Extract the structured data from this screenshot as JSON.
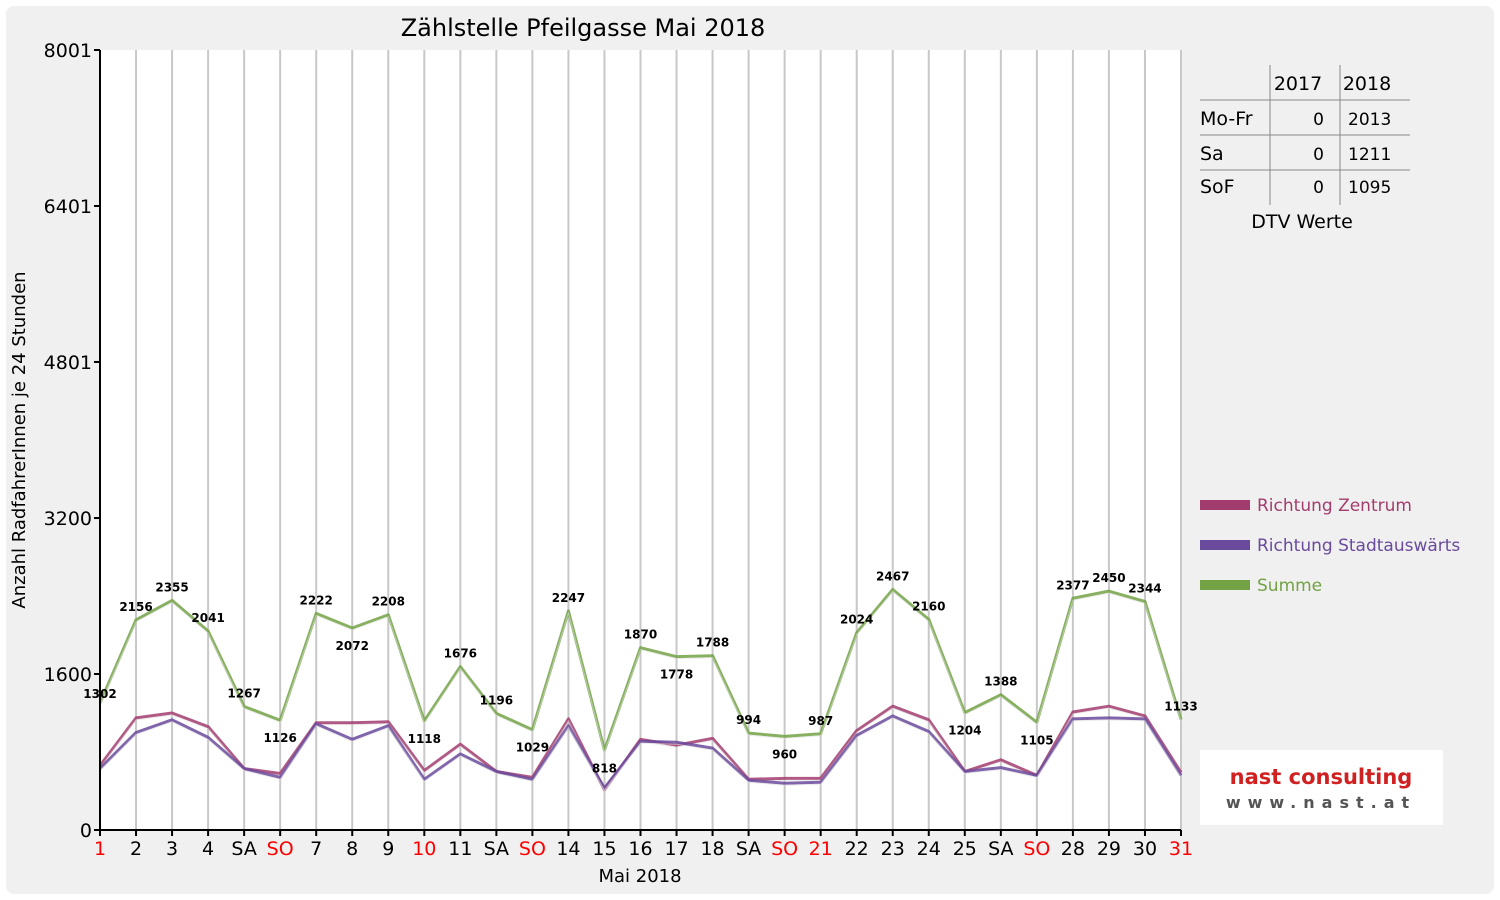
{
  "colors": {
    "zentrum": "#a23c6e",
    "stadtauswaerts": "#6a4a9c",
    "summe": "#72a244",
    "weekend_label": "#ff0000",
    "grid": "#c8c8c8"
  },
  "chart_data": {
    "type": "line",
    "title": "Zählstelle Pfeilgasse Mai 2018",
    "xlabel": "Mai 2018",
    "ylabel": "Anzahl RadfahrerInnen je 24 Stunden",
    "ylim": [
      0,
      8001
    ],
    "y_ticks": [
      "0",
      "1600",
      "3200",
      "4801",
      "6401",
      "8001"
    ],
    "y_tick_values": [
      0,
      1600,
      3200,
      4801,
      6401,
      8001
    ],
    "categories": [
      "1",
      "2",
      "3",
      "4",
      "SA",
      "SO",
      "7",
      "8",
      "9",
      "10",
      "11",
      "SA",
      "SO",
      "14",
      "15",
      "16",
      "17",
      "18",
      "SA",
      "SO",
      "21",
      "22",
      "23",
      "24",
      "25",
      "SA",
      "SO",
      "28",
      "29",
      "30",
      "31"
    ],
    "red_categories": [
      true,
      false,
      false,
      false,
      false,
      true,
      false,
      false,
      false,
      true,
      false,
      false,
      true,
      false,
      false,
      false,
      false,
      false,
      false,
      true,
      true,
      false,
      false,
      false,
      false,
      false,
      true,
      false,
      false,
      false,
      true
    ],
    "grid": true,
    "legend_position": "right",
    "series": [
      {
        "name": "Richtung Zentrum",
        "values": [
          660,
          1150,
          1200,
          1060,
          630,
          580,
          1100,
          1100,
          1110,
          610,
          880,
          600,
          540,
          1140,
          410,
          930,
          870,
          940,
          520,
          530,
          530,
          1020,
          1270,
          1130,
          600,
          720,
          560,
          1210,
          1270,
          1170,
          590
        ]
      },
      {
        "name": "Richtung Stadtauswärts",
        "values": [
          630,
          1000,
          1130,
          950,
          630,
          540,
          1090,
          930,
          1070,
          520,
          780,
          600,
          520,
          1070,
          430,
          910,
          900,
          840,
          510,
          480,
          490,
          970,
          1170,
          1010,
          600,
          640,
          560,
          1140,
          1150,
          1140,
          560
        ]
      },
      {
        "name": "Summe",
        "values": [
          1302,
          2156,
          2355,
          2041,
          1267,
          1126,
          2222,
          2072,
          2208,
          1118,
          1676,
          1196,
          1029,
          2247,
          818,
          1870,
          1778,
          1788,
          994,
          960,
          987,
          2024,
          2467,
          2160,
          1204,
          1388,
          1105,
          2377,
          2450,
          2344,
          1133
        ]
      }
    ],
    "summe_labels": [
      "1302",
      "2156",
      "2355",
      "2041",
      "1267",
      "1126",
      "2222",
      "2072",
      "2208",
      "1118",
      "1676",
      "1196",
      "1029",
      "2247",
      "818",
      "1870",
      "1778",
      "1788",
      "994",
      "960",
      "987",
      "2024",
      "2467",
      "2160",
      "1204",
      "1388",
      "1105",
      "2377",
      "2450",
      "2344",
      "1133"
    ]
  },
  "dtv_table": {
    "headers": [
      "",
      "2017",
      "2018"
    ],
    "rows": [
      {
        "label": "Mo-Fr",
        "v2017": "0",
        "v2018": "2013"
      },
      {
        "label": "Sa",
        "v2017": "0",
        "v2018": "1211"
      },
      {
        "label": "SoF",
        "v2017": "0",
        "v2018": "1095"
      }
    ],
    "caption": "DTV Werte"
  },
  "logo": {
    "main": "nast consulting",
    "sub": "www.nast.at"
  }
}
